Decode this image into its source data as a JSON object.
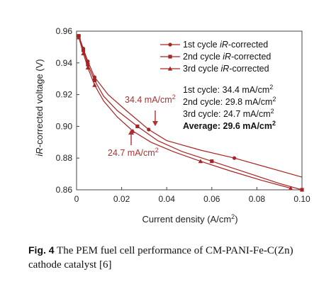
{
  "chart_data": {
    "type": "line",
    "xlabel": "Current density (A/cm²)",
    "ylabel": "iR-corrected voltage (V)",
    "xlim": [
      0,
      0.1
    ],
    "ylim": [
      0.86,
      0.96
    ],
    "xticks": [
      "0",
      "0.02",
      "0.04",
      "0.06",
      "0.08",
      "0.10"
    ],
    "yticks": [
      "0.86",
      "0.88",
      "0.90",
      "0.92",
      "0.94",
      "0.96"
    ],
    "grid": false,
    "legend_position": "top-right",
    "line_color": "#a82424",
    "series": [
      {
        "name": "1st cycle iR-corrected",
        "marker": "circle",
        "x": [
          0.001,
          0.003,
          0.005,
          0.008,
          0.014,
          0.022,
          0.032,
          0.04,
          0.055,
          0.07,
          0.085,
          0.1
        ],
        "y": [
          0.957,
          0.949,
          0.941,
          0.931,
          0.92,
          0.91,
          0.898,
          0.891,
          0.885,
          0.88,
          0.874,
          0.868
        ]
      },
      {
        "name": "2nd cycle iR-corrected",
        "marker": "square",
        "x": [
          0.001,
          0.003,
          0.005,
          0.008,
          0.012,
          0.018,
          0.027,
          0.036,
          0.047,
          0.06,
          0.075,
          0.09,
          0.1
        ],
        "y": [
          0.957,
          0.948,
          0.939,
          0.929,
          0.919,
          0.91,
          0.9,
          0.891,
          0.884,
          0.878,
          0.871,
          0.864,
          0.86
        ]
      },
      {
        "name": "3rd cycle iR-corrected",
        "marker": "triangle",
        "x": [
          0.001,
          0.003,
          0.005,
          0.008,
          0.012,
          0.018,
          0.025,
          0.033,
          0.043,
          0.055,
          0.068,
          0.082,
          0.095
        ],
        "y": [
          0.956,
          0.946,
          0.937,
          0.926,
          0.916,
          0.906,
          0.897,
          0.89,
          0.884,
          0.878,
          0.872,
          0.866,
          0.861
        ]
      }
    ],
    "annotations": [
      {
        "text": "34.4 mA/cm²",
        "x": 0.0344,
        "y": 0.8995
      },
      {
        "text": "24.7 mA/cm²",
        "x": 0.0247,
        "y": 0.8982
      }
    ],
    "notes": [
      {
        "text": "1st cycle:  34.4 mA/cm²",
        "bold": false
      },
      {
        "text": "2nd cycle:  29.8 mA/cm²",
        "bold": false
      },
      {
        "text": "3rd cycle:  24.7 mA/cm²",
        "bold": false
      },
      {
        "text": "Average:  29.6 mA/cm²",
        "bold": true
      }
    ]
  },
  "caption": {
    "label": "Fig. 4",
    "text": "The PEM fuel cell performance of CM-PANI-Fe-C(Zn) cathode catalyst [6]"
  }
}
